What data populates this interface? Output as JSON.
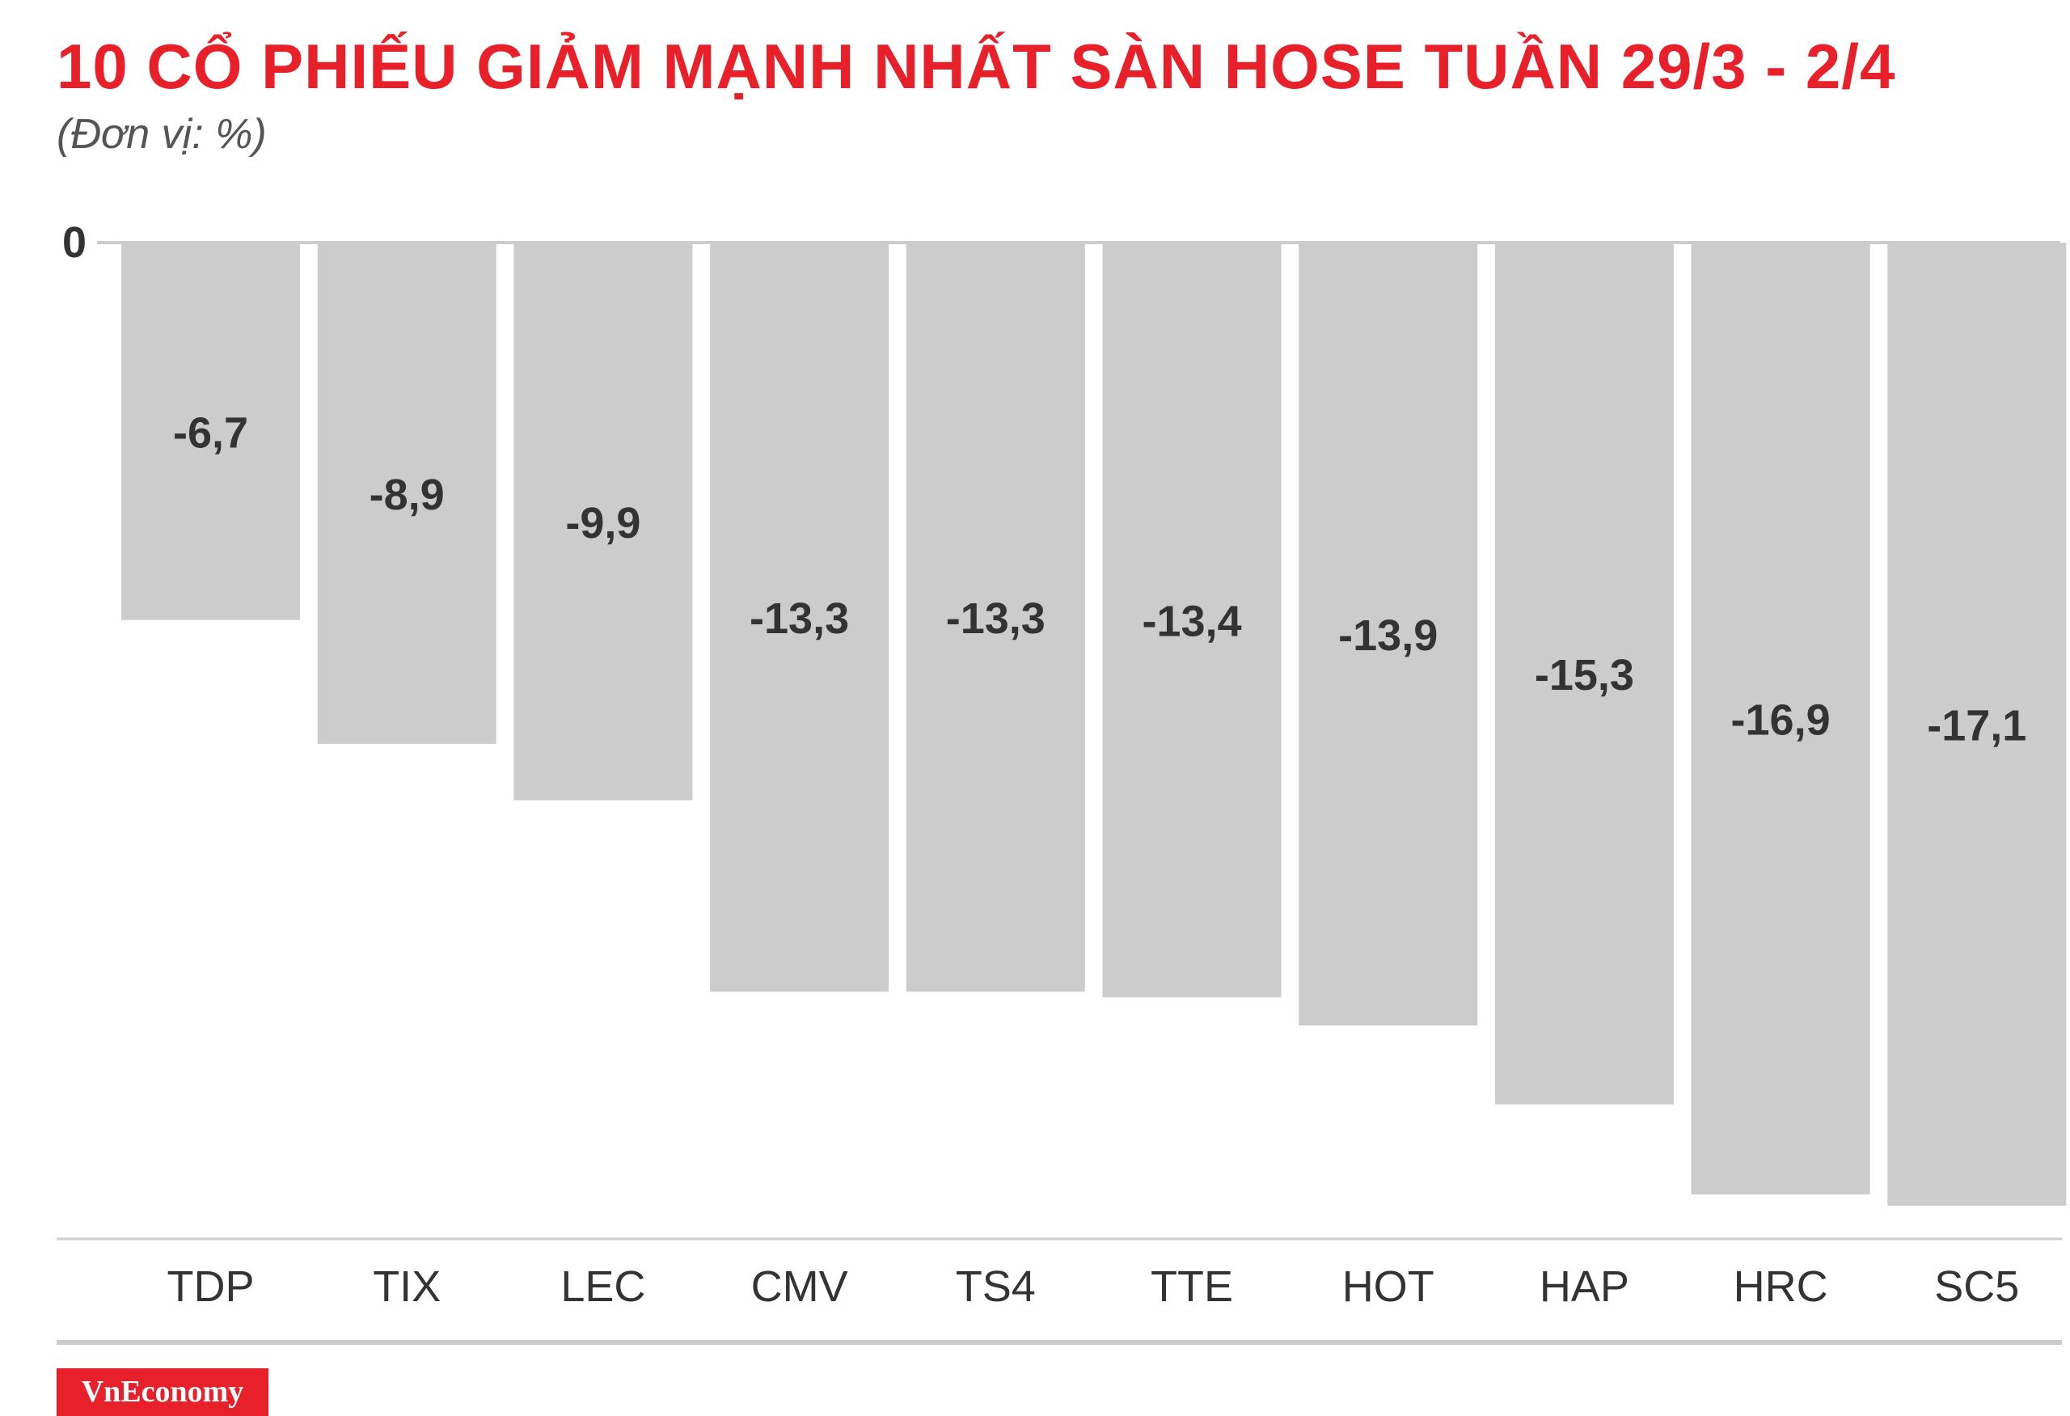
{
  "title": "10 CỔ PHIẾU GIẢM MẠNH NHẤT SÀN HOSE TUẦN 29/3 - 2/4",
  "subtitle": "(Đơn vị: %)",
  "brand": "VnEconomy",
  "colors": {
    "title": "#e8202a",
    "bar": "#cccccc",
    "text": "#333333",
    "axis": "#cccccc",
    "brand_bg": "#e8202a"
  },
  "chart_data": {
    "type": "bar",
    "categories": [
      "TDP",
      "TIX",
      "LEC",
      "CMV",
      "TS4",
      "TTE",
      "HOT",
      "HAP",
      "HRC",
      "SC5"
    ],
    "values": [
      -6.7,
      -8.9,
      -9.9,
      -13.3,
      -13.3,
      -13.4,
      -13.9,
      -15.3,
      -16.9,
      -17.1
    ],
    "value_labels": [
      "-6,7",
      "-8,9",
      "-9,9",
      "-13,3",
      "-13,3",
      "-13,4",
      "-13,9",
      "-15,3",
      "-16,9",
      "-17,1"
    ],
    "y_tick_labels": [
      "0"
    ],
    "ylim": [
      -17.1,
      0
    ],
    "grid": false,
    "legend": "none"
  }
}
